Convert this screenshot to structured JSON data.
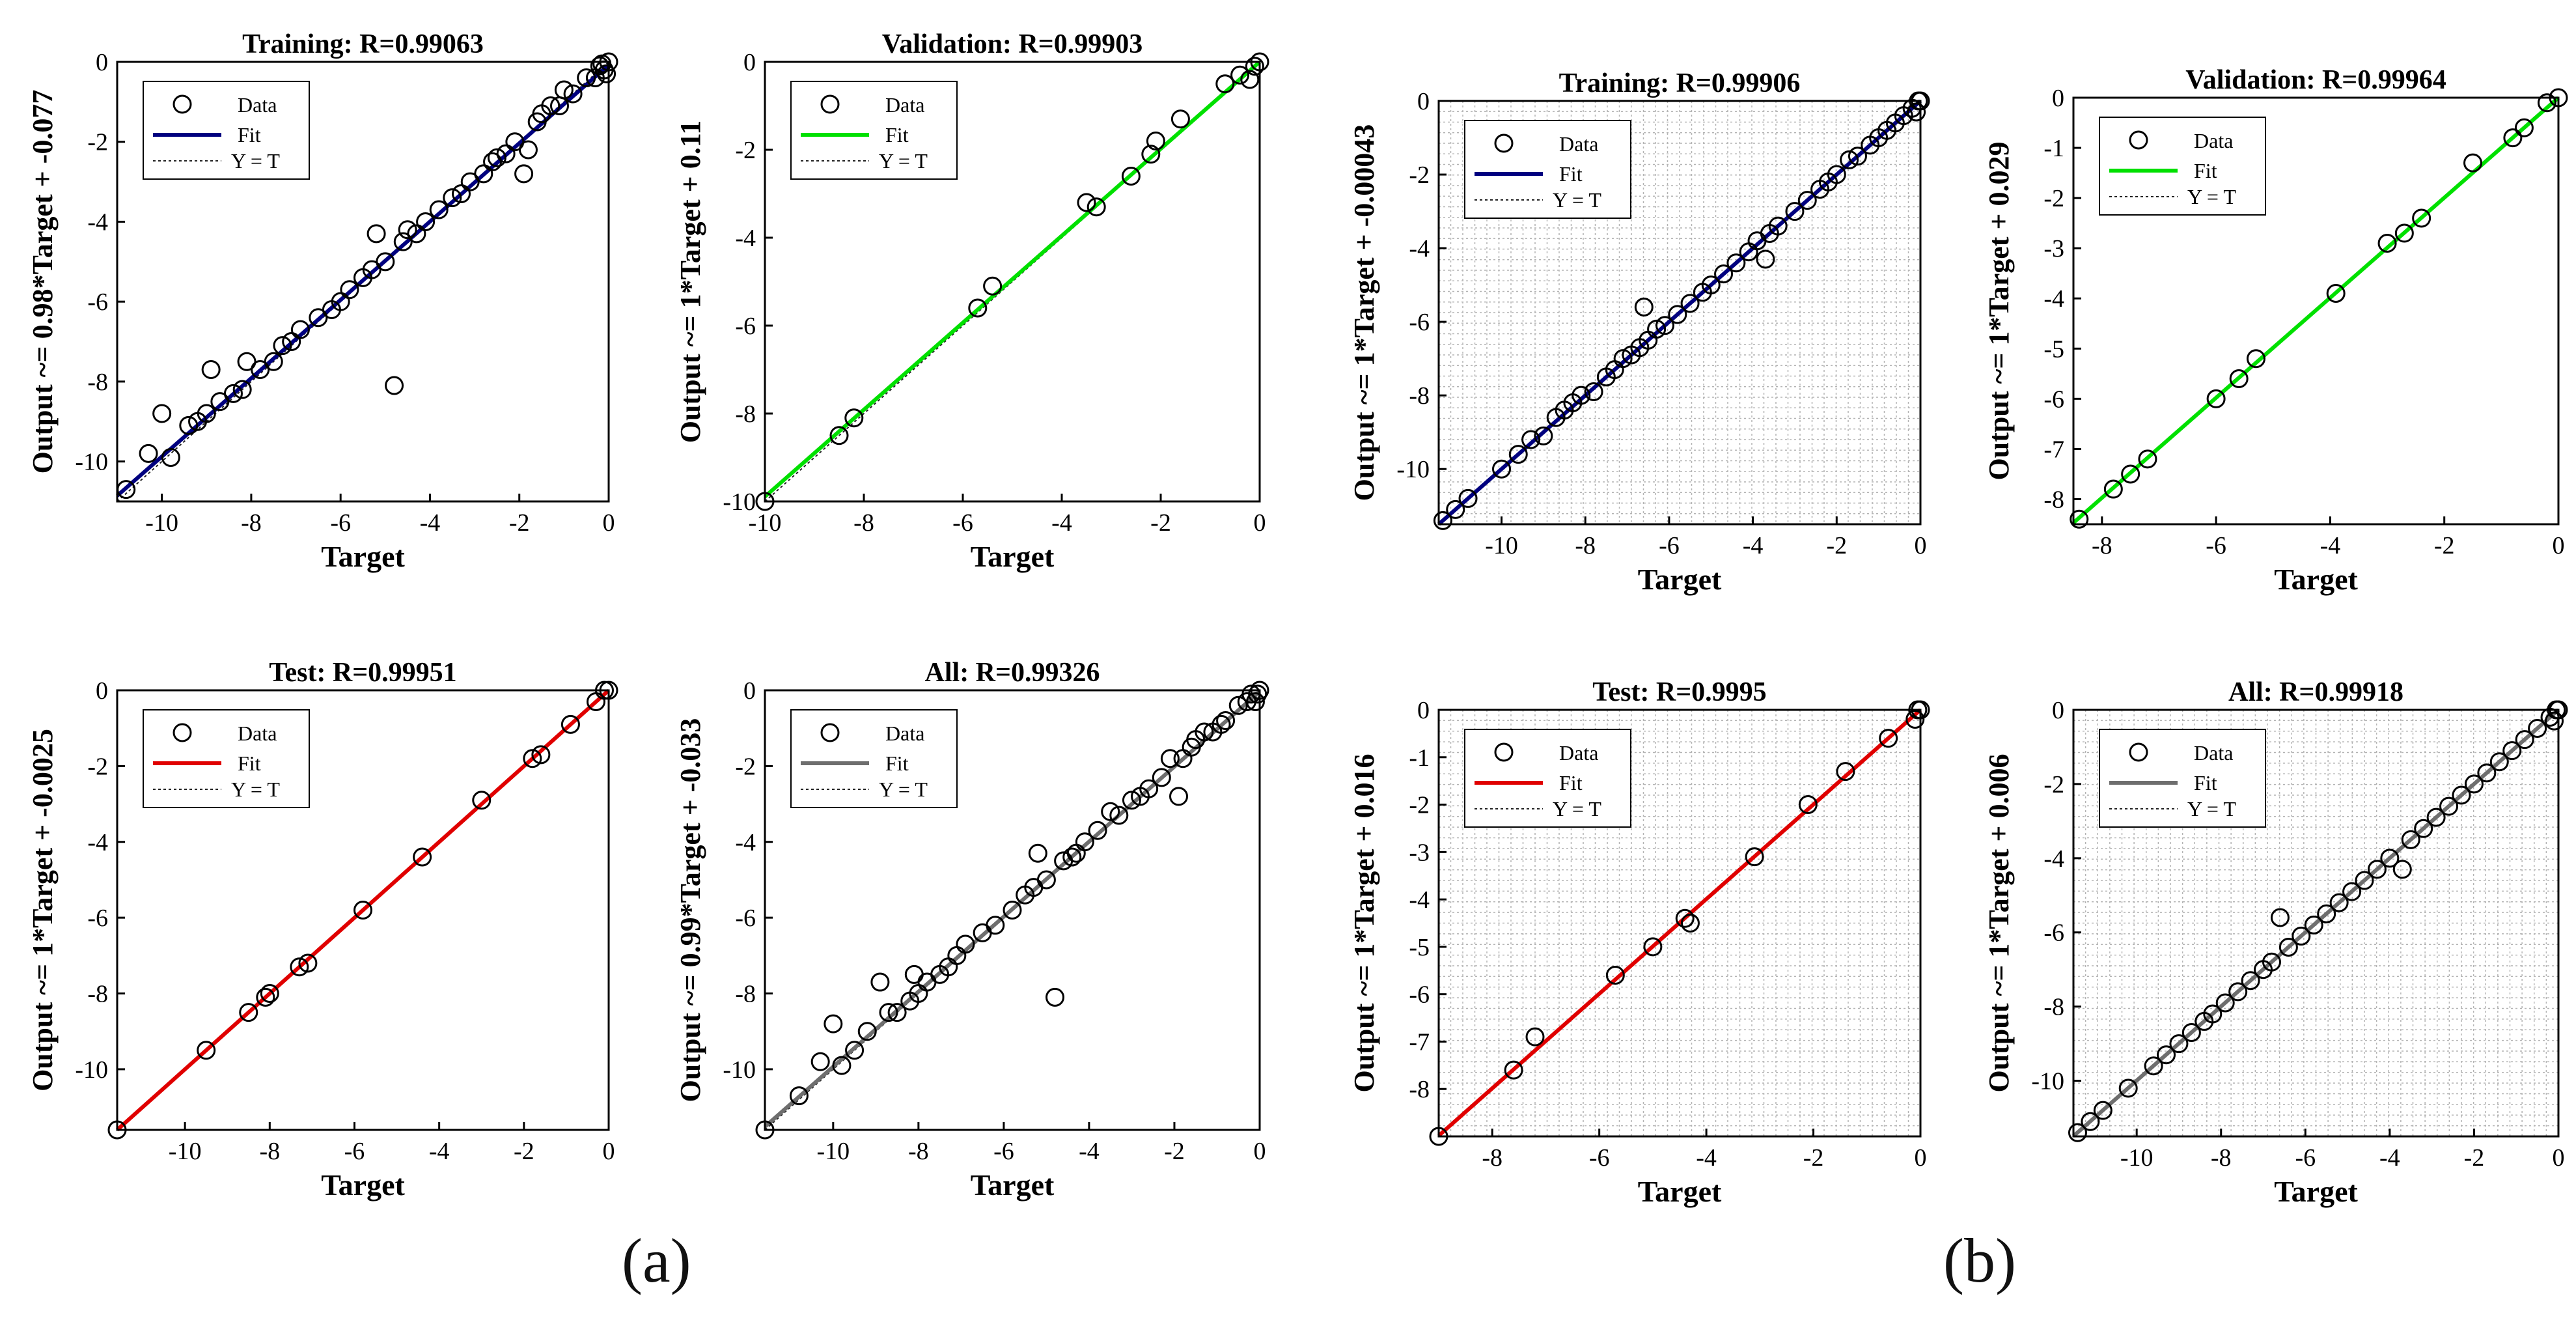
{
  "panel_labels": [
    "(a)",
    "(b)"
  ],
  "legend": {
    "data": "Data",
    "fit": "Fit",
    "yt": "Y = T"
  },
  "colors": {
    "training": "#00007f",
    "validation": "#00e000",
    "test": "#e00000",
    "all": "#6e6e6e",
    "marker": "#000000",
    "frame": "#000000",
    "grid": "#b4b4b4"
  },
  "chart_data": [
    {
      "type": "scatter",
      "group": "a",
      "title": "Training: R=0.99063",
      "xlabel": "Target",
      "ylabel": "Output ~= 0.98*Target + -0.077",
      "xlim": [
        -11,
        0
      ],
      "ylim": [
        -11,
        0
      ],
      "xticks": [
        -10,
        -8,
        -6,
        -4,
        -2,
        0
      ],
      "yticks": [
        0,
        -2,
        -4,
        -6,
        -8,
        -10
      ],
      "grid": false,
      "fit": {
        "slope": 0.98,
        "intercept": -0.077,
        "color_key": "training"
      },
      "points": [
        [
          -10.8,
          -10.7
        ],
        [
          -10.3,
          -9.8
        ],
        [
          -10,
          -8.8
        ],
        [
          -9.8,
          -9.9
        ],
        [
          -9.4,
          -9.1
        ],
        [
          -9.2,
          -9
        ],
        [
          -9,
          -8.8
        ],
        [
          -8.9,
          -7.7
        ],
        [
          -8.7,
          -8.5
        ],
        [
          -8.4,
          -8.3
        ],
        [
          -8.2,
          -8.2
        ],
        [
          -8.1,
          -7.5
        ],
        [
          -7.8,
          -7.7
        ],
        [
          -7.5,
          -7.5
        ],
        [
          -7.3,
          -7.1
        ],
        [
          -7.1,
          -7
        ],
        [
          -6.9,
          -6.7
        ],
        [
          -6.5,
          -6.4
        ],
        [
          -6.2,
          -6.2
        ],
        [
          -6,
          -6
        ],
        [
          -5.8,
          -5.7
        ],
        [
          -5.5,
          -5.4
        ],
        [
          -5.3,
          -5.2
        ],
        [
          -5.2,
          -4.3
        ],
        [
          -5,
          -5
        ],
        [
          -4.8,
          -8.1
        ],
        [
          -4.6,
          -4.5
        ],
        [
          -4.5,
          -4.2
        ],
        [
          -4.3,
          -4.3
        ],
        [
          -4.1,
          -4
        ],
        [
          -3.8,
          -3.7
        ],
        [
          -3.5,
          -3.4
        ],
        [
          -3.3,
          -3.3
        ],
        [
          -3.1,
          -3
        ],
        [
          -2.8,
          -2.8
        ],
        [
          -2.6,
          -2.5
        ],
        [
          -2.5,
          -2.4
        ],
        [
          -2.3,
          -2.3
        ],
        [
          -2.1,
          -2
        ],
        [
          -1.9,
          -2.8
        ],
        [
          -1.8,
          -2.2
        ],
        [
          -1.6,
          -1.5
        ],
        [
          -1.5,
          -1.3
        ],
        [
          -1.3,
          -1.1
        ],
        [
          -1.1,
          -1.1
        ],
        [
          -1,
          -0.7
        ],
        [
          -0.8,
          -0.8
        ],
        [
          -0.5,
          -0.4
        ],
        [
          -0.3,
          -0.4
        ],
        [
          -0.2,
          -0.1
        ],
        [
          -0.1,
          -0.2
        ],
        [
          0,
          0
        ],
        [
          -0.05,
          -0.3
        ],
        [
          -0.15,
          -0.05
        ]
      ]
    },
    {
      "type": "scatter",
      "group": "a",
      "title": "Validation: R=0.99903",
      "xlabel": "Target",
      "ylabel": "Output ~= 1*Target + 0.11",
      "xlim": [
        -10,
        0
      ],
      "ylim": [
        -10,
        0
      ],
      "xticks": [
        -10,
        -8,
        -6,
        -4,
        -2,
        0
      ],
      "yticks": [
        0,
        -2,
        -4,
        -6,
        -8,
        -10
      ],
      "grid": false,
      "fit": {
        "slope": 1,
        "intercept": 0.11,
        "color_key": "validation"
      },
      "points": [
        [
          -10,
          -10
        ],
        [
          -8.5,
          -8.5
        ],
        [
          -8.2,
          -8.1
        ],
        [
          -5.7,
          -5.6
        ],
        [
          -5.4,
          -5.1
        ],
        [
          -3.5,
          -3.2
        ],
        [
          -3.3,
          -3.3
        ],
        [
          -2.6,
          -2.6
        ],
        [
          -2.2,
          -2.1
        ],
        [
          -2.1,
          -1.8
        ],
        [
          -1.6,
          -1.3
        ],
        [
          -0.7,
          -0.5
        ],
        [
          -0.4,
          -0.3
        ],
        [
          -0.2,
          -0.4
        ],
        [
          0,
          0
        ],
        [
          -0.1,
          -0.1
        ]
      ]
    },
    {
      "type": "scatter",
      "group": "b",
      "title": "Training: R=0.99906",
      "xlabel": "Target",
      "ylabel": "Output ~= 1*Target + -0.00043",
      "xlim": [
        -11.5,
        0
      ],
      "ylim": [
        -11.5,
        0
      ],
      "xticks": [
        -10,
        -8,
        -6,
        -4,
        -2,
        0
      ],
      "yticks": [
        0,
        -2,
        -4,
        -6,
        -8,
        -10
      ],
      "grid": true,
      "fit": {
        "slope": 1,
        "intercept": -0.00043,
        "color_key": "training"
      },
      "points": [
        [
          -11.4,
          -11.4
        ],
        [
          -11.1,
          -11.1
        ],
        [
          -10.8,
          -10.8
        ],
        [
          -10,
          -10
        ],
        [
          -9.6,
          -9.6
        ],
        [
          -9.3,
          -9.2
        ],
        [
          -9,
          -9.1
        ],
        [
          -8.7,
          -8.6
        ],
        [
          -8.5,
          -8.4
        ],
        [
          -8.3,
          -8.2
        ],
        [
          -8.1,
          -8
        ],
        [
          -7.8,
          -7.9
        ],
        [
          -7.5,
          -7.5
        ],
        [
          -7.3,
          -7.3
        ],
        [
          -7.1,
          -7
        ],
        [
          -6.9,
          -6.9
        ],
        [
          -6.7,
          -6.7
        ],
        [
          -6.6,
          -5.6
        ],
        [
          -6.5,
          -6.5
        ],
        [
          -6.3,
          -6.2
        ],
        [
          -6.1,
          -6.1
        ],
        [
          -5.8,
          -5.8
        ],
        [
          -5.5,
          -5.5
        ],
        [
          -5.2,
          -5.2
        ],
        [
          -5,
          -5
        ],
        [
          -4.7,
          -4.7
        ],
        [
          -4.4,
          -4.4
        ],
        [
          -4.1,
          -4.1
        ],
        [
          -3.9,
          -3.8
        ],
        [
          -3.7,
          -4.3
        ],
        [
          -3.6,
          -3.6
        ],
        [
          -3.4,
          -3.4
        ],
        [
          -3,
          -3
        ],
        [
          -2.7,
          -2.7
        ],
        [
          -2.4,
          -2.4
        ],
        [
          -2.2,
          -2.2
        ],
        [
          -2,
          -2
        ],
        [
          -1.7,
          -1.6
        ],
        [
          -1.5,
          -1.5
        ],
        [
          -1.2,
          -1.2
        ],
        [
          -1,
          -1
        ],
        [
          -0.8,
          -0.8
        ],
        [
          -0.6,
          -0.6
        ],
        [
          -0.4,
          -0.4
        ],
        [
          -0.2,
          -0.2
        ],
        [
          0,
          0
        ],
        [
          -0.1,
          -0.3
        ],
        [
          -0.05,
          0
        ]
      ]
    },
    {
      "type": "scatter",
      "group": "b",
      "title": "Validation: R=0.99964",
      "xlabel": "Target",
      "ylabel": "Output ~= 1*Target + 0.029",
      "xlim": [
        -8.5,
        0
      ],
      "ylim": [
        -8.5,
        0
      ],
      "xticks": [
        -8,
        -6,
        -4,
        -2,
        0
      ],
      "yticks": [
        0,
        -1,
        -2,
        -3,
        -4,
        -5,
        -6,
        -7,
        -8
      ],
      "grid": false,
      "fit": {
        "slope": 1,
        "intercept": 0.029,
        "color_key": "validation"
      },
      "points": [
        [
          -8.4,
          -8.4
        ],
        [
          -7.8,
          -7.8
        ],
        [
          -7.5,
          -7.5
        ],
        [
          -7.2,
          -7.2
        ],
        [
          -6,
          -6
        ],
        [
          -5.6,
          -5.6
        ],
        [
          -5.3,
          -5.2
        ],
        [
          -3.9,
          -3.9
        ],
        [
          -3,
          -2.9
        ],
        [
          -2.7,
          -2.7
        ],
        [
          -2.4,
          -2.4
        ],
        [
          -1.5,
          -1.3
        ],
        [
          -0.8,
          -0.8
        ],
        [
          -0.6,
          -0.6
        ],
        [
          -0.2,
          -0.1
        ],
        [
          0,
          0
        ]
      ]
    },
    {
      "type": "scatter",
      "group": "a",
      "title": "Test: R=0.99951",
      "xlabel": "Target",
      "ylabel": "Output ~= 1*Target + -0.0025",
      "xlim": [
        -11.6,
        0
      ],
      "ylim": [
        -11.6,
        0
      ],
      "xticks": [
        -10,
        -8,
        -6,
        -4,
        -2,
        0
      ],
      "yticks": [
        0,
        -2,
        -4,
        -6,
        -8,
        -10
      ],
      "grid": false,
      "fit": {
        "slope": 1,
        "intercept": -0.0025,
        "color_key": "test"
      },
      "points": [
        [
          -11.6,
          -11.6
        ],
        [
          -9.5,
          -9.5
        ],
        [
          -8.5,
          -8.5
        ],
        [
          -8.1,
          -8.1
        ],
        [
          -8,
          -8
        ],
        [
          -7.3,
          -7.3
        ],
        [
          -7.1,
          -7.2
        ],
        [
          -5.8,
          -5.8
        ],
        [
          -4.4,
          -4.4
        ],
        [
          -3,
          -2.9
        ],
        [
          -1.8,
          -1.8
        ],
        [
          -1.6,
          -1.7
        ],
        [
          -0.9,
          -0.9
        ],
        [
          -0.3,
          -0.3
        ],
        [
          -0.1,
          0
        ],
        [
          0,
          0
        ]
      ]
    },
    {
      "type": "scatter",
      "group": "a",
      "title": "All: R=0.99326",
      "xlabel": "Target",
      "ylabel": "Output ~= 0.99*Target + -0.033",
      "xlim": [
        -11.6,
        0
      ],
      "ylim": [
        -11.6,
        0
      ],
      "xticks": [
        -10,
        -8,
        -6,
        -4,
        -2,
        0
      ],
      "yticks": [
        0,
        -2,
        -4,
        -6,
        -8,
        -10
      ],
      "grid": false,
      "fit": {
        "slope": 0.99,
        "intercept": -0.033,
        "color_key": "all"
      },
      "points": [
        [
          -11.6,
          -11.6
        ],
        [
          -10.8,
          -10.7
        ],
        [
          -10.3,
          -9.8
        ],
        [
          -10,
          -8.8
        ],
        [
          -9.8,
          -9.9
        ],
        [
          -9.5,
          -9.5
        ],
        [
          -9.2,
          -9
        ],
        [
          -8.9,
          -7.7
        ],
        [
          -8.7,
          -8.5
        ],
        [
          -8.5,
          -8.5
        ],
        [
          -8.2,
          -8.2
        ],
        [
          -8.1,
          -7.5
        ],
        [
          -8,
          -8
        ],
        [
          -7.8,
          -7.7
        ],
        [
          -7.5,
          -7.5
        ],
        [
          -7.3,
          -7.3
        ],
        [
          -7.1,
          -7
        ],
        [
          -6.9,
          -6.7
        ],
        [
          -6.5,
          -6.4
        ],
        [
          -6.2,
          -6.2
        ],
        [
          -5.8,
          -5.8
        ],
        [
          -5.5,
          -5.4
        ],
        [
          -5.3,
          -5.2
        ],
        [
          -5.2,
          -4.3
        ],
        [
          -5,
          -5
        ],
        [
          -4.8,
          -8.1
        ],
        [
          -4.6,
          -4.5
        ],
        [
          -4.4,
          -4.4
        ],
        [
          -4.3,
          -4.3
        ],
        [
          -4.1,
          -4
        ],
        [
          -3.8,
          -3.7
        ],
        [
          -3.5,
          -3.2
        ],
        [
          -3.3,
          -3.3
        ],
        [
          -3,
          -2.9
        ],
        [
          -2.8,
          -2.8
        ],
        [
          -2.6,
          -2.6
        ],
        [
          -2.3,
          -2.3
        ],
        [
          -2.1,
          -1.8
        ],
        [
          -1.9,
          -2.8
        ],
        [
          -1.8,
          -1.8
        ],
        [
          -1.6,
          -1.5
        ],
        [
          -1.5,
          -1.3
        ],
        [
          -1.3,
          -1.1
        ],
        [
          -1.1,
          -1.1
        ],
        [
          -0.9,
          -0.9
        ],
        [
          -0.8,
          -0.8
        ],
        [
          -0.5,
          -0.4
        ],
        [
          -0.3,
          -0.3
        ],
        [
          -0.2,
          -0.1
        ],
        [
          0,
          0
        ],
        [
          -0.1,
          -0.3
        ],
        [
          -0.05,
          -0.1
        ]
      ]
    },
    {
      "type": "scatter",
      "group": "b",
      "title": "Test: R=0.9995",
      "xlabel": "Target",
      "ylabel": "Output ~= 1*Target + 0.016",
      "xlim": [
        -9,
        0
      ],
      "ylim": [
        -9,
        0
      ],
      "xticks": [
        -8,
        -6,
        -4,
        -2,
        0
      ],
      "yticks": [
        0,
        -1,
        -2,
        -3,
        -4,
        -5,
        -6,
        -7,
        -8
      ],
      "grid": true,
      "fit": {
        "slope": 1,
        "intercept": 0.016,
        "color_key": "test"
      },
      "points": [
        [
          -9,
          -9
        ],
        [
          -7.6,
          -7.6
        ],
        [
          -7.2,
          -6.9
        ],
        [
          -5.7,
          -5.6
        ],
        [
          -5,
          -5
        ],
        [
          -4.4,
          -4.4
        ],
        [
          -4.3,
          -4.5
        ],
        [
          -3.1,
          -3.1
        ],
        [
          -2.1,
          -2
        ],
        [
          -1.4,
          -1.3
        ],
        [
          -0.6,
          -0.6
        ],
        [
          -0.1,
          -0.2
        ],
        [
          0,
          0
        ],
        [
          -0.05,
          0.05
        ]
      ]
    },
    {
      "type": "scatter",
      "group": "b",
      "title": "All: R=0.99918",
      "xlabel": "Target",
      "ylabel": "Output ~= 1*Target + 0.006",
      "xlim": [
        -11.5,
        0
      ],
      "ylim": [
        -11.5,
        0
      ],
      "xticks": [
        -10,
        -8,
        -6,
        -4,
        -2,
        0
      ],
      "yticks": [
        0,
        -2,
        -4,
        -6,
        -8,
        -10
      ],
      "grid": true,
      "fit": {
        "slope": 1,
        "intercept": 0.006,
        "color_key": "all"
      },
      "points": [
        [
          -11.4,
          -11.4
        ],
        [
          -11.1,
          -11.1
        ],
        [
          -10.8,
          -10.8
        ],
        [
          -10.2,
          -10.2
        ],
        [
          -9.6,
          -9.6
        ],
        [
          -9.3,
          -9.3
        ],
        [
          -9,
          -9
        ],
        [
          -8.7,
          -8.7
        ],
        [
          -8.4,
          -8.4
        ],
        [
          -8.2,
          -8.2
        ],
        [
          -7.9,
          -7.9
        ],
        [
          -7.6,
          -7.6
        ],
        [
          -7.3,
          -7.3
        ],
        [
          -7,
          -7
        ],
        [
          -6.8,
          -6.8
        ],
        [
          -6.6,
          -5.6
        ],
        [
          -6.4,
          -6.4
        ],
        [
          -6.1,
          -6.1
        ],
        [
          -5.8,
          -5.8
        ],
        [
          -5.5,
          -5.5
        ],
        [
          -5.2,
          -5.2
        ],
        [
          -4.9,
          -4.9
        ],
        [
          -4.6,
          -4.6
        ],
        [
          -4.3,
          -4.3
        ],
        [
          -4,
          -4
        ],
        [
          -3.7,
          -4.3
        ],
        [
          -3.5,
          -3.5
        ],
        [
          -3.2,
          -3.2
        ],
        [
          -2.9,
          -2.9
        ],
        [
          -2.6,
          -2.6
        ],
        [
          -2.3,
          -2.3
        ],
        [
          -2,
          -2
        ],
        [
          -1.7,
          -1.7
        ],
        [
          -1.4,
          -1.4
        ],
        [
          -1.1,
          -1.1
        ],
        [
          -0.8,
          -0.8
        ],
        [
          -0.5,
          -0.5
        ],
        [
          -0.2,
          -0.2
        ],
        [
          0,
          0
        ],
        [
          -0.1,
          -0.3
        ],
        [
          -0.05,
          0.05
        ]
      ]
    }
  ]
}
